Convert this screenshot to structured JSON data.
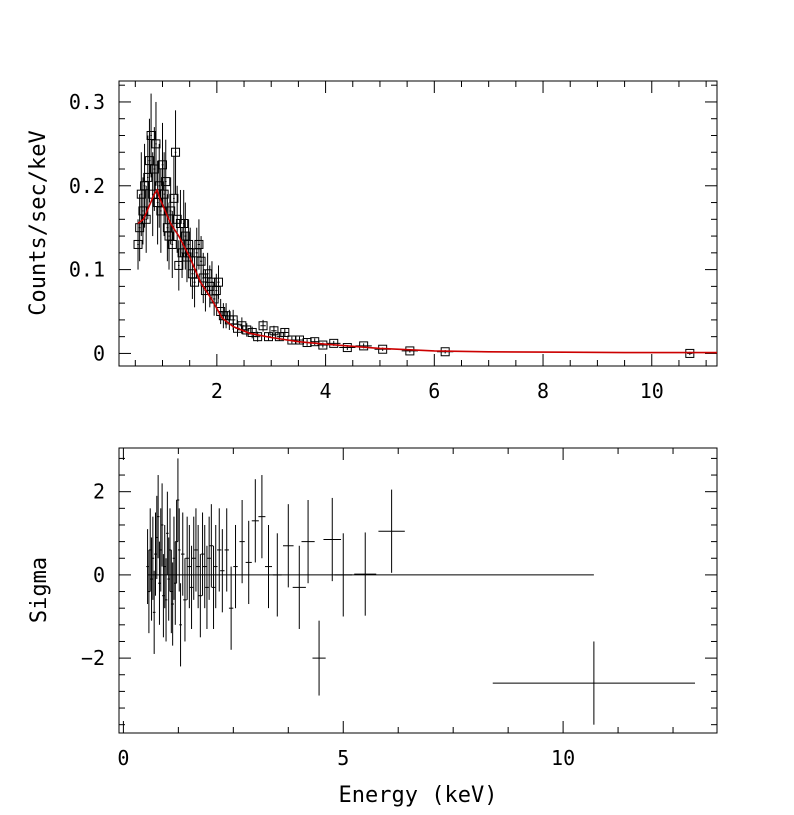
{
  "chart_data": [
    {
      "type": "scatter",
      "panel": "spectrum",
      "title": "",
      "xlabel": "",
      "ylabel": "Counts/sec/keV",
      "xlim": [
        0.2,
        11.2
      ],
      "ylim": [
        -0.015,
        0.325
      ],
      "xticks": [
        2,
        4,
        6,
        8,
        10
      ],
      "yticks": [
        0,
        0.1,
        0.2,
        0.3
      ],
      "ytick_labels": [
        "0",
        "0.1",
        "0.2",
        "0.3"
      ],
      "grid": false,
      "colors": {
        "data": "#000000",
        "model": "#cc0000"
      },
      "series": [
        {
          "kind": "data",
          "points": [
            [
              0.55,
              0.13,
              0.03
            ],
            [
              0.58,
              0.15,
              0.04
            ],
            [
              0.61,
              0.19,
              0.05
            ],
            [
              0.64,
              0.17,
              0.04
            ],
            [
              0.67,
              0.2,
              0.05
            ],
            [
              0.7,
              0.16,
              0.04
            ],
            [
              0.73,
              0.21,
              0.05
            ],
            [
              0.76,
              0.23,
              0.05
            ],
            [
              0.79,
              0.26,
              0.05
            ],
            [
              0.82,
              0.19,
              0.05
            ],
            [
              0.85,
              0.22,
              0.05
            ],
            [
              0.88,
              0.25,
              0.05
            ],
            [
              0.91,
              0.18,
              0.05
            ],
            [
              0.94,
              0.2,
              0.05
            ],
            [
              0.97,
              0.17,
              0.05
            ],
            [
              1.0,
              0.225,
              0.05
            ],
            [
              1.03,
              0.19,
              0.05
            ],
            [
              1.06,
              0.205,
              0.05
            ],
            [
              1.09,
              0.15,
              0.04
            ],
            [
              1.12,
              0.14,
              0.04
            ],
            [
              1.15,
              0.17,
              0.04
            ],
            [
              1.18,
              0.13,
              0.04
            ],
            [
              1.21,
              0.185,
              0.05
            ],
            [
              1.24,
              0.24,
              0.05
            ],
            [
              1.27,
              0.16,
              0.04
            ],
            [
              1.3,
              0.105,
              0.03
            ],
            [
              1.33,
              0.155,
              0.04
            ],
            [
              1.36,
              0.12,
              0.03
            ],
            [
              1.39,
              0.155,
              0.04
            ],
            [
              1.42,
              0.14,
              0.04
            ],
            [
              1.45,
              0.115,
              0.03
            ],
            [
              1.48,
              0.13,
              0.03
            ],
            [
              1.51,
              0.12,
              0.03
            ],
            [
              1.55,
              0.095,
              0.03
            ],
            [
              1.59,
              0.085,
              0.03
            ],
            [
              1.63,
              0.12,
              0.03
            ],
            [
              1.67,
              0.13,
              0.03
            ],
            [
              1.71,
              0.11,
              0.03
            ],
            [
              1.75,
              0.09,
              0.03
            ],
            [
              1.79,
              0.075,
              0.025
            ],
            [
              1.83,
              0.095,
              0.025
            ],
            [
              1.87,
              0.08,
              0.025
            ],
            [
              1.91,
              0.085,
              0.025
            ],
            [
              1.95,
              0.065,
              0.02
            ],
            [
              1.99,
              0.075,
              0.02
            ],
            [
              2.03,
              0.085,
              0.02
            ],
            [
              2.07,
              0.05,
              0.015
            ],
            [
              2.12,
              0.045,
              0.015
            ],
            [
              2.17,
              0.045,
              0.015
            ],
            [
              2.23,
              0.04,
              0.012
            ],
            [
              2.3,
              0.04,
              0.012
            ],
            [
              2.38,
              0.03,
              0.01
            ],
            [
              2.46,
              0.033,
              0.01
            ],
            [
              2.55,
              0.028,
              0.008
            ],
            [
              2.65,
              0.025,
              0.007
            ],
            [
              2.75,
              0.02,
              0.006
            ],
            [
              2.85,
              0.033,
              0.007
            ],
            [
              2.95,
              0.02,
              0.005
            ],
            [
              3.05,
              0.027,
              0.006
            ],
            [
              3.15,
              0.02,
              0.005
            ],
            [
              3.25,
              0.025,
              0.005
            ],
            [
              3.38,
              0.016,
              0.004
            ],
            [
              3.52,
              0.016,
              0.004
            ],
            [
              3.66,
              0.013,
              0.004
            ],
            [
              3.8,
              0.014,
              0.004
            ],
            [
              3.95,
              0.01,
              0.003
            ],
            [
              4.15,
              0.012,
              0.003
            ],
            [
              4.4,
              0.007,
              0.003
            ],
            [
              4.7,
              0.009,
              0.003
            ],
            [
              5.05,
              0.005,
              0.002
            ],
            [
              5.55,
              0.003,
              0.002
            ],
            [
              6.2,
              0.002,
              0.002
            ],
            [
              10.7,
              0.0,
              0.002
            ]
          ]
        },
        {
          "kind": "model",
          "x": [
            0.55,
            0.65,
            0.75,
            0.85,
            0.9,
            0.95,
            1.05,
            1.15,
            1.3,
            1.5,
            1.7,
            1.9,
            2.1,
            2.3,
            2.6,
            3.0,
            3.5,
            4.0,
            5.0,
            6.0,
            7.0,
            8.4,
            9.5,
            11.2
          ],
          "y": [
            0.155,
            0.16,
            0.175,
            0.19,
            0.195,
            0.185,
            0.17,
            0.155,
            0.14,
            0.115,
            0.085,
            0.065,
            0.042,
            0.032,
            0.024,
            0.019,
            0.014,
            0.011,
            0.006,
            0.003,
            0.002,
            0.0015,
            0.001,
            0.001
          ]
        }
      ]
    },
    {
      "type": "scatter",
      "panel": "residuals",
      "title": "",
      "xlabel": "Energy (keV)",
      "ylabel": "Sigma",
      "xlim": [
        -0.1,
        13.5
      ],
      "ylim": [
        -3.8,
        3.05
      ],
      "xticks": [
        0,
        5,
        10
      ],
      "yticks": [
        -2,
        0,
        2
      ],
      "ytick_labels": [
        "−2",
        "0",
        "2"
      ],
      "grid": false,
      "zero_line": [
        0.55,
        10.7
      ],
      "points": [
        [
          0.55,
          0.2,
          0.03,
          0.9
        ],
        [
          0.58,
          -0.4,
          0.03,
          1.0
        ],
        [
          0.61,
          0.6,
          0.03,
          1.0
        ],
        [
          0.64,
          -0.1,
          0.03,
          1.0
        ],
        [
          0.67,
          0.4,
          0.03,
          1.0
        ],
        [
          0.7,
          -0.9,
          0.03,
          1.0
        ],
        [
          0.73,
          0.5,
          0.03,
          1.0
        ],
        [
          0.76,
          0.9,
          0.03,
          1.0
        ],
        [
          0.79,
          1.4,
          0.03,
          1.0
        ],
        [
          0.82,
          -0.2,
          0.03,
          1.0
        ],
        [
          0.85,
          0.6,
          0.03,
          1.0
        ],
        [
          0.88,
          1.2,
          0.03,
          1.0
        ],
        [
          0.91,
          -0.5,
          0.03,
          1.0
        ],
        [
          0.94,
          0.2,
          0.03,
          1.0
        ],
        [
          0.97,
          -0.6,
          0.03,
          1.0
        ],
        [
          1.0,
          1.0,
          0.03,
          1.0
        ],
        [
          1.03,
          -0.1,
          0.03,
          1.0
        ],
        [
          1.06,
          0.6,
          0.03,
          1.0
        ],
        [
          1.09,
          -0.4,
          0.03,
          1.0
        ],
        [
          1.12,
          -0.7,
          0.03,
          1.0
        ],
        [
          1.15,
          0.4,
          0.03,
          1.0
        ],
        [
          1.18,
          -0.2,
          0.03,
          1.0
        ],
        [
          1.21,
          0.8,
          0.03,
          1.0
        ],
        [
          1.24,
          1.8,
          0.03,
          1.0
        ],
        [
          1.27,
          0.6,
          0.03,
          1.0
        ],
        [
          1.3,
          -1.2,
          0.03,
          1.0
        ],
        [
          1.35,
          0.5,
          0.04,
          1.0
        ],
        [
          1.4,
          -0.6,
          0.04,
          1.0
        ],
        [
          1.45,
          0.4,
          0.04,
          1.0
        ],
        [
          1.5,
          0.2,
          0.04,
          1.0
        ],
        [
          1.55,
          -0.3,
          0.04,
          1.0
        ],
        [
          1.6,
          0.4,
          0.04,
          1.0
        ],
        [
          1.65,
          0.6,
          0.04,
          1.0
        ],
        [
          1.7,
          0.2,
          0.04,
          1.0
        ],
        [
          1.75,
          -0.5,
          0.04,
          1.0
        ],
        [
          1.8,
          0.5,
          0.04,
          1.0
        ],
        [
          1.85,
          0.2,
          0.04,
          1.0
        ],
        [
          1.9,
          -0.3,
          0.04,
          1.0
        ],
        [
          1.95,
          0.4,
          0.04,
          1.0
        ],
        [
          2.0,
          0.7,
          0.04,
          1.0
        ],
        [
          2.05,
          -0.3,
          0.04,
          1.0
        ],
        [
          2.1,
          0.2,
          0.04,
          1.0
        ],
        [
          2.18,
          0.6,
          0.05,
          1.0
        ],
        [
          2.25,
          0.1,
          0.05,
          1.0
        ],
        [
          2.35,
          0.6,
          0.05,
          1.0
        ],
        [
          2.45,
          -0.8,
          0.05,
          1.0
        ],
        [
          2.55,
          0.2,
          0.05,
          1.0
        ],
        [
          2.7,
          0.8,
          0.06,
          1.0
        ],
        [
          2.85,
          0.3,
          0.07,
          1.0
        ],
        [
          3.0,
          1.3,
          0.08,
          1.0
        ],
        [
          3.15,
          1.4,
          0.08,
          1.0
        ],
        [
          3.3,
          0.2,
          0.08,
          1.0
        ],
        [
          3.5,
          0.0,
          0.1,
          1.0
        ],
        [
          3.75,
          0.7,
          0.12,
          1.0
        ],
        [
          4.0,
          -0.3,
          0.15,
          1.0
        ],
        [
          4.2,
          0.8,
          0.15,
          1.0
        ],
        [
          4.45,
          -2.0,
          0.15,
          0.9
        ],
        [
          4.75,
          0.85,
          0.2,
          1.0
        ],
        [
          5.0,
          0.0,
          0.2,
          1.0
        ],
        [
          5.5,
          0.02,
          0.25,
          1.0
        ],
        [
          6.1,
          1.05,
          0.3,
          1.0
        ],
        [
          10.7,
          -2.6,
          2.3,
          1.0
        ]
      ]
    }
  ]
}
